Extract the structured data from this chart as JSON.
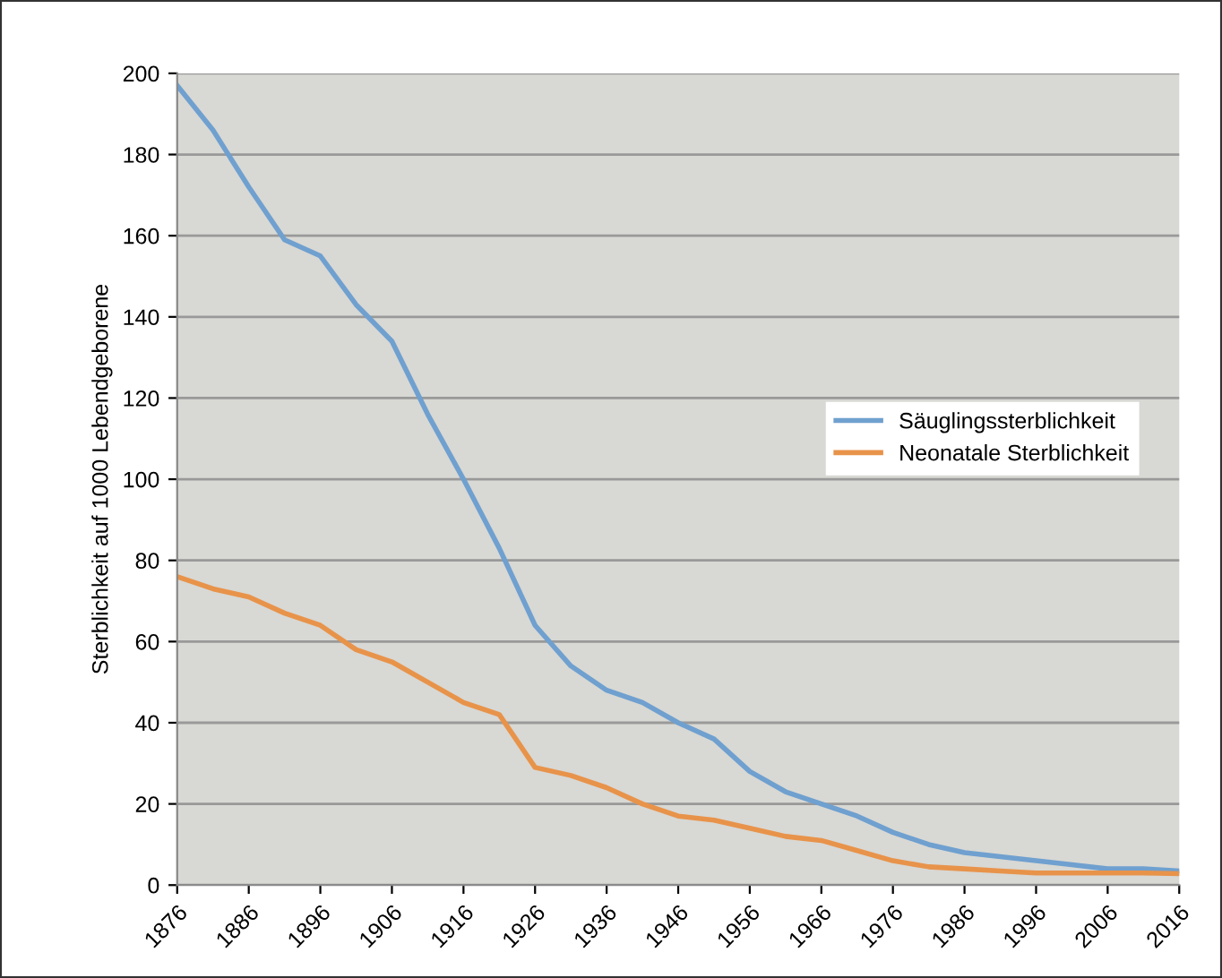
{
  "chart_data": {
    "type": "line",
    "ylabel": "Sterblichkeit auf 1000 Lebendgeborene",
    "x": [
      1876,
      1881,
      1886,
      1891,
      1896,
      1901,
      1906,
      1911,
      1916,
      1921,
      1926,
      1931,
      1936,
      1941,
      1946,
      1951,
      1956,
      1961,
      1966,
      1971,
      1976,
      1981,
      1986,
      1991,
      1996,
      2001,
      2006,
      2011,
      2016
    ],
    "series": [
      {
        "name": "Säuglingssterblichkeit",
        "color": "#6fa0cf",
        "values": [
          197,
          186,
          172,
          159,
          155,
          143,
          134,
          116,
          100,
          83,
          64,
          54,
          48,
          45,
          40,
          36,
          28,
          23,
          20,
          17,
          13,
          10,
          8,
          7,
          6,
          5,
          4,
          4,
          3.5
        ]
      },
      {
        "name": "Neonatale Sterblichkeit",
        "color": "#e8934a",
        "values": [
          76,
          73,
          71,
          67,
          64,
          58,
          55,
          50,
          45,
          42,
          29,
          27,
          24,
          20,
          17,
          16,
          14,
          12,
          11,
          8.5,
          6,
          4.5,
          4,
          3.5,
          3,
          3,
          3,
          3,
          2.8
        ]
      }
    ],
    "xlim": [
      1876,
      2016
    ],
    "xticks": [
      1876,
      1886,
      1896,
      1906,
      1916,
      1926,
      1936,
      1946,
      1956,
      1966,
      1976,
      1986,
      1996,
      2006,
      2016
    ],
    "ylim": [
      0,
      200
    ],
    "yticks": [
      0,
      20,
      40,
      60,
      80,
      100,
      120,
      140,
      160,
      180,
      200
    ],
    "grid": "y",
    "legend": "right",
    "marker": "none",
    "line_style": "solid"
  }
}
